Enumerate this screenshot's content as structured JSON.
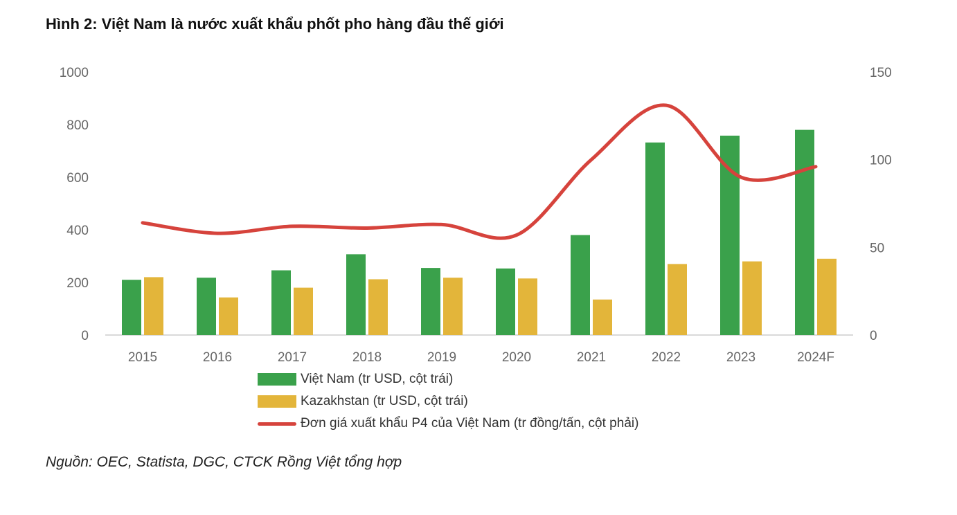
{
  "title": "Hình 2: Việt Nam là nước xuất khẩu phốt pho hàng đầu thế giới",
  "source": "Nguồn: OEC, Statista, DGC, CTCK Rồng Việt tổng hợp",
  "colors": {
    "vietnam": "#3aa14b",
    "kazakhstan": "#e3b53a",
    "price": "#d6433c",
    "axis": "#d9d9d9"
  },
  "chart_data": {
    "type": "bar",
    "categories": [
      "2015",
      "2016",
      "2017",
      "2018",
      "2019",
      "2020",
      "2021",
      "2022",
      "2023",
      "2024F"
    ],
    "left_axis": {
      "ylim": [
        0,
        1000
      ],
      "ticks": [
        "0",
        "200",
        "400",
        "600",
        "800",
        "1000"
      ],
      "tick_values": [
        0,
        200,
        400,
        600,
        800,
        1000
      ]
    },
    "right_axis": {
      "ylim": [
        0,
        150
      ],
      "ticks": [
        "0",
        "50",
        "100",
        "150"
      ],
      "tick_values": [
        0,
        50,
        100,
        150
      ]
    },
    "series": [
      {
        "name": "Việt Nam (tr USD, cột trái)",
        "type": "bar",
        "axis": "left",
        "values": [
          210,
          218,
          246,
          307,
          255,
          253,
          380,
          732,
          758,
          780
        ]
      },
      {
        "name": "Kazakhstan (tr USD, cột trái)",
        "type": "bar",
        "axis": "left",
        "values": [
          220,
          143,
          180,
          212,
          218,
          215,
          135,
          270,
          280,
          290
        ]
      },
      {
        "name": "Đơn giá xuất khẩu P4 của Việt Nam (tr đồng/tấn, cột phải)",
        "type": "line",
        "axis": "right",
        "values": [
          64,
          58,
          62,
          61,
          63,
          57,
          100,
          131,
          90,
          96
        ]
      }
    ]
  }
}
